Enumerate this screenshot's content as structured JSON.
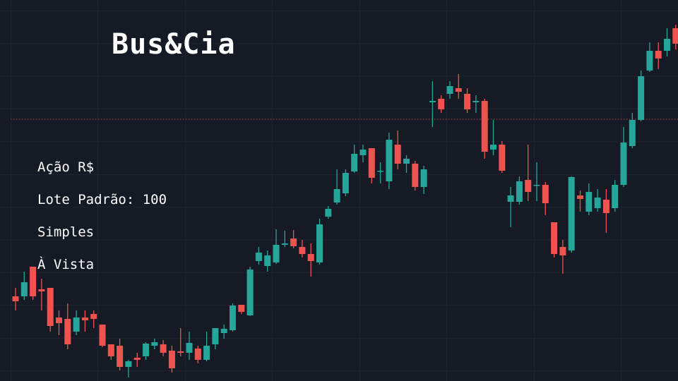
{
  "chart_data": {
    "type": "candlestick",
    "title": "Bus&Cia",
    "annotations": [
      "Ação R$",
      "Lote Padrão: 100",
      "Simples",
      "À Vista"
    ],
    "open": [
      120,
      120,
      162,
      130,
      132,
      90,
      88,
      70,
      90,
      95,
      80,
      52,
      50,
      20,
      33,
      35,
      50,
      52,
      43,
      42,
      40,
      46,
      30,
      52,
      68,
      72,
      108,
      93,
      170,
      163,
      168,
      193,
      202,
      190,
      180,
      168,
      233,
      253,
      266,
      297,
      320,
      330,
      297,
      283,
      335,
      308,
      308,
      275,
      395,
      400,
      407,
      415,
      407,
      395,
      397,
      328,
      335,
      254,
      254,
      285,
      277,
      278,
      225,
      190,
      185,
      263,
      240,
      245,
      257,
      245,
      278,
      333,
      370,
      440,
      468,
      468,
      500
    ],
    "high": [
      132,
      155,
      162,
      145,
      132,
      100,
      110,
      100,
      100,
      100,
      80,
      52,
      60,
      30,
      40,
      55,
      60,
      58,
      50,
      75,
      70,
      50,
      70,
      75,
      80,
      110,
      108,
      162,
      190,
      185,
      215,
      213,
      214,
      200,
      195,
      230,
      248,
      300,
      300,
      335,
      335,
      330,
      310,
      352,
      355,
      320,
      312,
      305,
      425,
      405,
      425,
      435,
      415,
      405,
      400,
      370,
      340,
      275,
      290,
      335,
      310,
      282,
      225,
      200,
      290,
      270,
      280,
      272,
      272,
      285,
      360,
      380,
      440,
      480,
      480,
      500,
      505
    ],
    "low": [
      100,
      115,
      115,
      100,
      70,
      65,
      45,
      65,
      70,
      75,
      48,
      30,
      15,
      5,
      20,
      30,
      45,
      35,
      12,
      35,
      30,
      25,
      28,
      45,
      60,
      70,
      95,
      92,
      165,
      155,
      166,
      190,
      188,
      175,
      148,
      165,
      230,
      250,
      262,
      295,
      310,
      280,
      280,
      272,
      300,
      295,
      270,
      265,
      360,
      380,
      400,
      400,
      380,
      380,
      315,
      320,
      295,
      218,
      250,
      255,
      255,
      235,
      175,
      152,
      182,
      240,
      235,
      240,
      210,
      240,
      275,
      330,
      368,
      438,
      442,
      460,
      470
    ],
    "close": [
      113,
      140,
      120,
      127,
      78,
      82,
      52,
      90,
      86,
      88,
      50,
      35,
      20,
      28,
      30,
      53,
      55,
      40,
      18,
      40,
      54,
      30,
      50,
      75,
      74,
      107,
      98,
      158,
      182,
      178,
      193,
      195,
      191,
      180,
      170,
      222,
      244,
      272,
      295,
      322,
      328,
      288,
      298,
      342,
      308,
      315,
      275,
      300,
      397,
      385,
      418,
      410,
      385,
      397,
      325,
      335,
      298,
      263,
      283,
      268,
      278,
      252,
      180,
      178,
      289,
      258,
      268,
      260,
      238,
      278,
      338,
      370,
      432,
      468,
      457,
      485,
      478
    ],
    "up_color": "#26a69a",
    "down_color": "#ef5350",
    "reference_line": 371,
    "reference_color": "#ef5350",
    "ylim": [
      0,
      540
    ]
  }
}
